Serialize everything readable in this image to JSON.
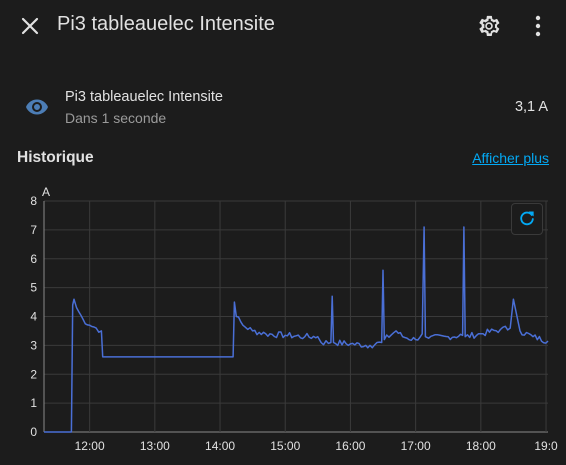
{
  "header": {
    "title": "Pi3 tableauelec Intensite"
  },
  "entity": {
    "name": "Pi3 tableauelec Intensite",
    "last_changed": "Dans 1 seconde",
    "state": "3,1 A"
  },
  "history": {
    "title": "Historique",
    "more_link": "Afficher plus"
  },
  "colors": {
    "accent": "#03a9f4",
    "line": "#4a6fd6",
    "icon": "#4c7db5"
  },
  "chart_data": {
    "type": "line",
    "ylabel": "A",
    "ylim": [
      0,
      8
    ],
    "yticks": [
      "0",
      "1",
      "2",
      "3",
      "4",
      "5",
      "6",
      "7",
      "8"
    ],
    "xticks": [
      "12:00",
      "13:00",
      "14:00",
      "15:00",
      "16:00",
      "17:00",
      "18:00",
      "19:0"
    ],
    "xlim_hours": [
      11.3,
      19.03
    ],
    "series": [
      {
        "name": "",
        "x": [
          11.3,
          11.72,
          11.74,
          11.76,
          11.8,
          11.9,
          12.0,
          12.1,
          12.18,
          12.2,
          13.0,
          14.0,
          14.2,
          14.22,
          14.25,
          14.35,
          14.5,
          14.7,
          15.0,
          15.3,
          15.5,
          15.55,
          15.7,
          15.72,
          15.74,
          16.0,
          16.3,
          16.48,
          16.5,
          16.52,
          16.7,
          16.8,
          17.0,
          17.1,
          17.13,
          17.15,
          17.2,
          17.5,
          17.72,
          17.74,
          17.76,
          18.0,
          18.3,
          18.45,
          18.5,
          18.6,
          18.8,
          19.03
        ],
        "values": [
          0,
          0,
          4.4,
          4.6,
          4.3,
          3.9,
          3.7,
          3.6,
          3.5,
          2.6,
          2.6,
          2.6,
          2.6,
          4.5,
          4.0,
          3.7,
          3.5,
          3.4,
          3.35,
          3.3,
          3.3,
          3.1,
          3.1,
          4.7,
          3.1,
          3.05,
          3.0,
          3.1,
          5.6,
          3.2,
          3.5,
          3.3,
          3.2,
          3.4,
          7.1,
          3.3,
          3.25,
          3.3,
          3.35,
          7.1,
          3.3,
          3.4,
          3.55,
          3.6,
          4.6,
          3.5,
          3.3,
          3.15
        ]
      }
    ]
  }
}
